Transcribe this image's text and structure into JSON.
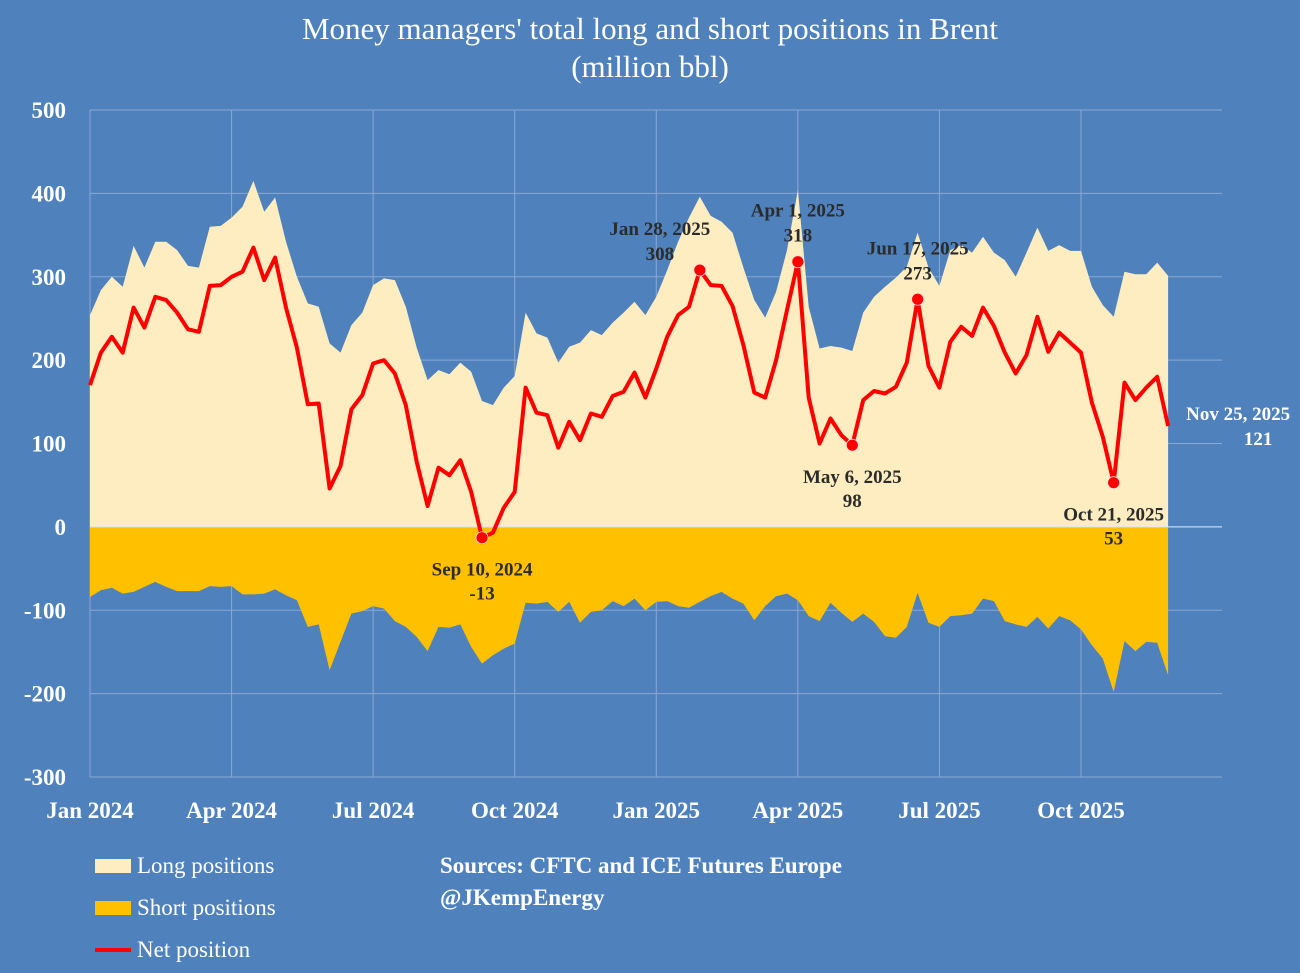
{
  "title_line1": "Money managers' total long and short positions in Brent",
  "title_line2": "(million bbl)",
  "legend": {
    "long": "Long positions",
    "short": "Short positions",
    "net": "Net position"
  },
  "source": {
    "line1": "Sources: CFTC and ICE Futures Europe",
    "line2": "@JKempEnergy"
  },
  "colors": {
    "background": "#4f81bd",
    "long": "#fdedc0",
    "short": "#ffc000",
    "net": "#ff0000",
    "grid": "#8ca8d4",
    "annotation_text": "#2b2b2b"
  },
  "chart_data": {
    "type": "area",
    "title": "Money managers' total long and short positions in Brent (million bbl)",
    "xlabel": "",
    "ylabel": "",
    "ylim": [
      -300,
      500
    ],
    "yticks": [
      500,
      400,
      300,
      200,
      100,
      0,
      -100,
      -200,
      -300
    ],
    "grid": true,
    "legend_position": "bottom-left",
    "x_start": "Jan 2, 2024",
    "x_end": "Nov 25, 2025",
    "x_frequency": "weekly",
    "xtick_labels": [
      {
        "label": "Jan 2024",
        "index": 0
      },
      {
        "label": "Apr 2024",
        "index": 13
      },
      {
        "label": "Jul 2024",
        "index": 26
      },
      {
        "label": "Oct 2024",
        "index": 39
      },
      {
        "label": "Jan 2025",
        "index": 52
      },
      {
        "label": "Apr 2025",
        "index": 65
      },
      {
        "label": "Jul 2025",
        "index": 78
      },
      {
        "label": "Oct 2025",
        "index": 91
      }
    ],
    "series": [
      {
        "name": "Long positions",
        "kind": "area",
        "values": [
          254,
          284,
          300,
          288,
          337,
          311,
          342,
          342,
          332,
          313,
          311,
          360,
          361,
          371,
          384,
          415,
          378,
          395,
          342,
          300,
          268,
          264,
          220,
          209,
          242,
          257,
          290,
          298,
          296,
          264,
          215,
          176,
          188,
          183,
          197,
          186,
          151,
          146,
          167,
          181,
          257,
          232,
          227,
          197,
          216,
          221,
          236,
          230,
          245,
          257,
          270,
          254,
          276,
          308,
          342,
          371,
          396,
          373,
          366,
          353,
          311,
          272,
          251,
          282,
          332,
          404,
          264,
          214,
          217,
          215,
          211,
          257,
          276,
          288,
          299,
          312,
          353,
          311,
          289,
          332,
          338,
          329,
          348,
          329,
          320,
          300,
          329,
          359,
          331,
          338,
          331,
          331,
          288,
          266,
          252,
          306,
          303,
          303,
          317,
          301
        ]
      },
      {
        "name": "Short positions",
        "kind": "area",
        "values": [
          -84,
          -76,
          -73,
          -80,
          -78,
          -72,
          -66,
          -72,
          -77,
          -77,
          -77,
          -71,
          -72,
          -71,
          -81,
          -81,
          -80,
          -75,
          -82,
          -88,
          -120,
          -117,
          -172,
          -138,
          -104,
          -101,
          -95,
          -98,
          -113,
          -120,
          -132,
          -149,
          -120,
          -121,
          -117,
          -144,
          -164,
          -154,
          -146,
          -140,
          -91,
          -92,
          -90,
          -102,
          -90,
          -115,
          -102,
          -100,
          -89,
          -95,
          -86,
          -100,
          -90,
          -89,
          -95,
          -97,
          -90,
          -83,
          -78,
          -86,
          -92,
          -112,
          -95,
          -83,
          -80,
          -88,
          -107,
          -113,
          -91,
          -103,
          -114,
          -104,
          -114,
          -131,
          -133,
          -120,
          -79,
          -115,
          -120,
          -107,
          -106,
          -104,
          -86,
          -89,
          -113,
          -117,
          -120,
          -108,
          -122,
          -107,
          -112,
          -123,
          -142,
          -158,
          -198,
          -137,
          -149,
          -138,
          -139,
          -178
        ]
      },
      {
        "name": "Net position",
        "kind": "line",
        "values": [
          170,
          209,
          228,
          209,
          263,
          239,
          276,
          272,
          257,
          237,
          234,
          289,
          290,
          300,
          306,
          335,
          296,
          323,
          263,
          215,
          147,
          148,
          46,
          73,
          141,
          158,
          196,
          200,
          184,
          146,
          78,
          25,
          71,
          62,
          80,
          42,
          -13,
          -7,
          23,
          42,
          167,
          137,
          134,
          95,
          126,
          104,
          136,
          132,
          157,
          162,
          185,
          155,
          190,
          228,
          254,
          264,
          308,
          290,
          289,
          265,
          218,
          161,
          155,
          200,
          260,
          318,
          155,
          100,
          130,
          110,
          98,
          152,
          163,
          160,
          168,
          197,
          273,
          193,
          167,
          222,
          240,
          229,
          263,
          241,
          209,
          184,
          206,
          252,
          210,
          233,
          221,
          209,
          149,
          108,
          53,
          173,
          152,
          167,
          180,
          121
        ]
      }
    ],
    "annotations": [
      {
        "date": "Sep 10, 2024",
        "value": "-13",
        "index": 36,
        "position": "below"
      },
      {
        "date": "Jan 28, 2025",
        "value": "308",
        "index": 56,
        "position": "above-left"
      },
      {
        "date": "Apr 1, 2025",
        "value": "318",
        "index": 65,
        "position": "above"
      },
      {
        "date": "May 6, 2025",
        "value": "98",
        "index": 70,
        "position": "below"
      },
      {
        "date": "Jun 17, 2025",
        "value": "273",
        "index": 76,
        "position": "above"
      },
      {
        "date": "Oct 21, 2025",
        "value": "53",
        "index": 94,
        "position": "below"
      },
      {
        "date": "Nov 25, 2025",
        "value": "121",
        "index": 99,
        "position": "right",
        "marker": false,
        "text_color": "white"
      }
    ]
  }
}
